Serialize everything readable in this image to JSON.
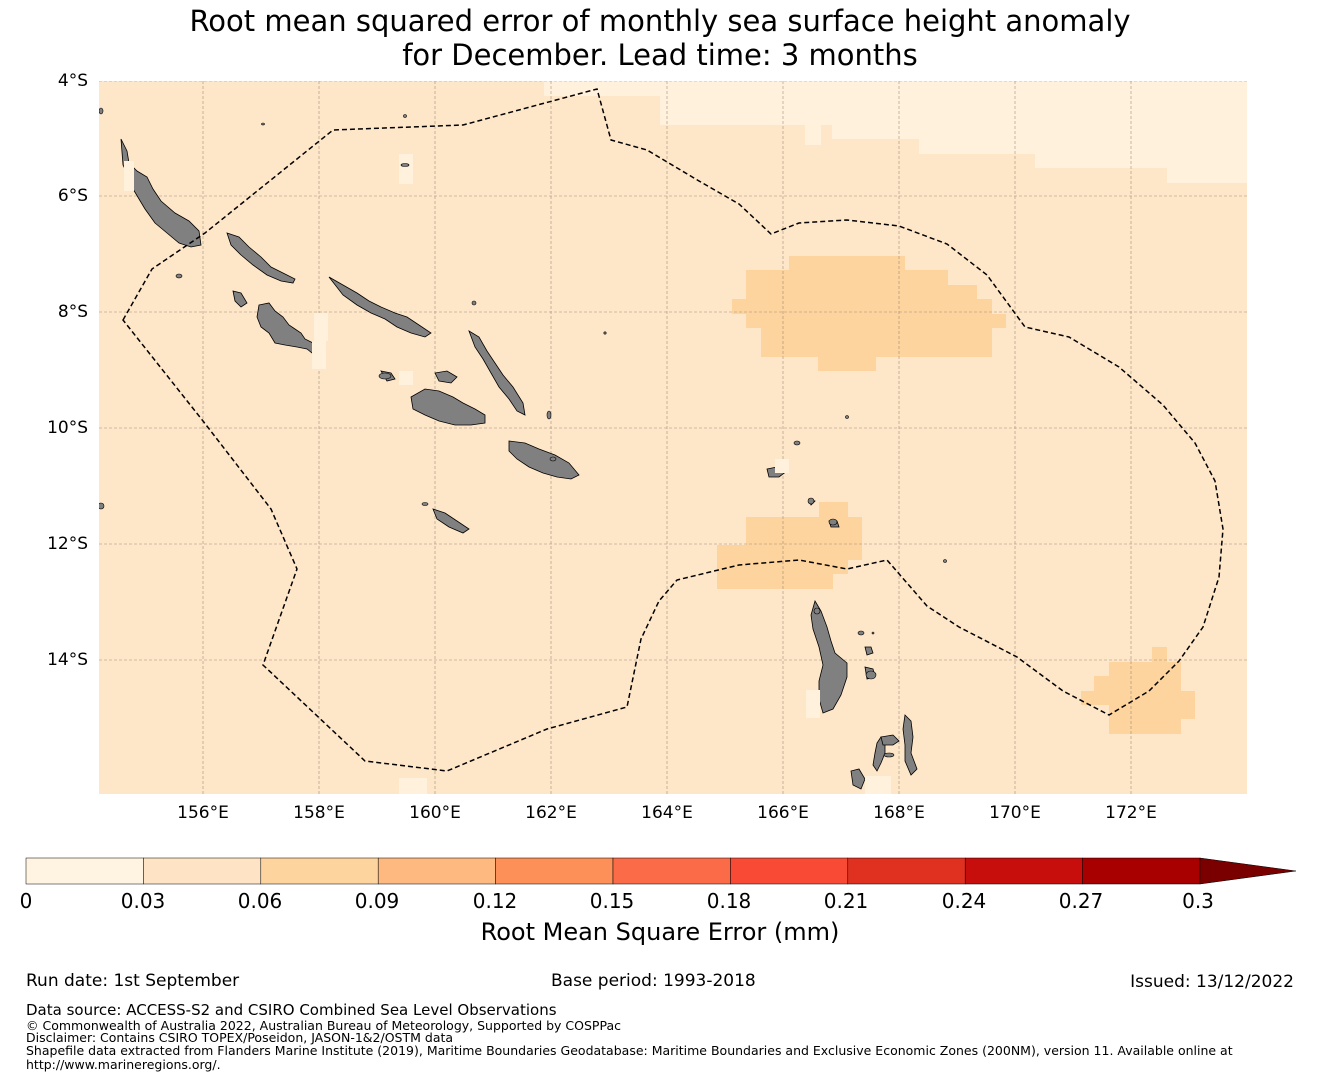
{
  "title": {
    "line1": "Root mean squared error of monthly sea surface height anomaly",
    "line2": "for December. Lead time: 3 months"
  },
  "map": {
    "lat_labels": [
      "4°S",
      "6°S",
      "8°S",
      "10°S",
      "12°S",
      "14°S"
    ],
    "lon_labels": [
      "156°E",
      "158°E",
      "160°E",
      "162°E",
      "164°E",
      "166°E",
      "168°E",
      "170°E",
      "172°E"
    ],
    "colors": {
      "ocean_base": "#fee6c8",
      "lighter_zone": "#fff1dc",
      "higher_zone": "#fdd49e",
      "land": "#808080",
      "land_edge": "#000000",
      "grid": "#8a7a6a"
    }
  },
  "colorbar": {
    "ticks": [
      "0",
      "0.03",
      "0.06",
      "0.09",
      "0.12",
      "0.15",
      "0.18",
      "0.21",
      "0.24",
      "0.27",
      "0.3"
    ],
    "colors": [
      "#fff3e1",
      "#fee3c4",
      "#fdd39e",
      "#fdb97f",
      "#fc9058",
      "#fb6b48",
      "#f84a35",
      "#e03020",
      "#c80d0d",
      "#a80000",
      "#7a0000"
    ],
    "label": "Root Mean Square Error (mm)"
  },
  "footer": {
    "run_date": "Run date: 1st September",
    "base_period": "Base period: 1993-2018",
    "issued": "Issued: 13/12/2022",
    "data_source": "Data source: ACCESS-S2 and CSIRO Combined Sea Level Observations",
    "copyright": "© Commonwealth of Australia 2022, Australian Bureau of Meteorology, Supported by COSPPac",
    "disclaimer": "Disclaimer: Contains CSIRO TOPEX/Poseidon, JASON-1&2/OSTM data",
    "shapefile_line1": "Shapefile data extracted from Flanders Marine Institute (2019), Maritime Boundaries Geodatabase: Maritime Boundaries and Exclusive Economic Zones (200NM), version 11. Available online at",
    "shapefile_line2": "http://www.marineregions.org/."
  }
}
